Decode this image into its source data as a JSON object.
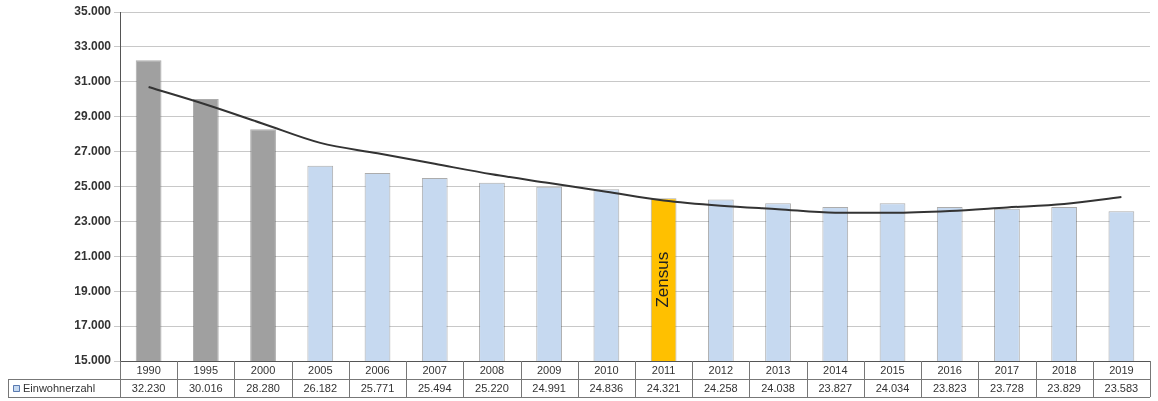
{
  "chart_data": {
    "type": "bar",
    "categories": [
      "1990",
      "1995",
      "2000",
      "2005",
      "2006",
      "2007",
      "2008",
      "2009",
      "2010",
      "2011",
      "2012",
      "2013",
      "2014",
      "2015",
      "2016",
      "2017",
      "2018",
      "2019"
    ],
    "series": [
      {
        "name": "Einwohnerzahl",
        "color": "#c6d9f0",
        "colors": [
          "#a0a0a0",
          "#a0a0a0",
          "#a0a0a0",
          "#c6d9f0",
          "#c6d9f0",
          "#c6d9f0",
          "#c6d9f0",
          "#c6d9f0",
          "#c6d9f0",
          "#ffc000",
          "#c6d9f0",
          "#c6d9f0",
          "#c6d9f0",
          "#c6d9f0",
          "#c6d9f0",
          "#c6d9f0",
          "#c6d9f0",
          "#c6d9f0"
        ],
        "values": [
          32230,
          30016,
          28280,
          26182,
          25771,
          25494,
          25220,
          24991,
          24836,
          24321,
          24258,
          24038,
          23827,
          24034,
          23823,
          23728,
          23829,
          23583
        ],
        "value_labels": [
          "32.230",
          "30.016",
          "28.280",
          "26.182",
          "25.771",
          "25.494",
          "25.220",
          "24.991",
          "24.836",
          "24.321",
          "24.258",
          "24.038",
          "23.827",
          "24.034",
          "23.823",
          "23.728",
          "23.829",
          "23.583"
        ]
      },
      {
        "type": "line",
        "color": "#333333",
        "values": [
          30700,
          29700,
          28600,
          27500,
          26900,
          26300,
          25700,
          25200,
          24700,
          24200,
          23900,
          23700,
          23500,
          23500,
          23600,
          23800,
          24000,
          24400
        ]
      }
    ],
    "ylim": [
      15000,
      35000
    ],
    "yticks": [
      {
        "value": 15000,
        "label": "15.000"
      },
      {
        "value": 17000,
        "label": "17.000"
      },
      {
        "value": 19000,
        "label": "19.000"
      },
      {
        "value": 21000,
        "label": "21.000"
      },
      {
        "value": 23000,
        "label": "23.000"
      },
      {
        "value": 25000,
        "label": "25.000"
      },
      {
        "value": 27000,
        "label": "27.000"
      },
      {
        "value": 29000,
        "label": "29.000"
      },
      {
        "value": 31000,
        "label": "31.000"
      },
      {
        "value": 33000,
        "label": "33.000"
      },
      {
        "value": 35000,
        "label": "35.000"
      }
    ],
    "grid": "y",
    "legend": "bottom left",
    "marker": "none",
    "line_style": "solid",
    "annotations": [
      "Zensus"
    ]
  }
}
